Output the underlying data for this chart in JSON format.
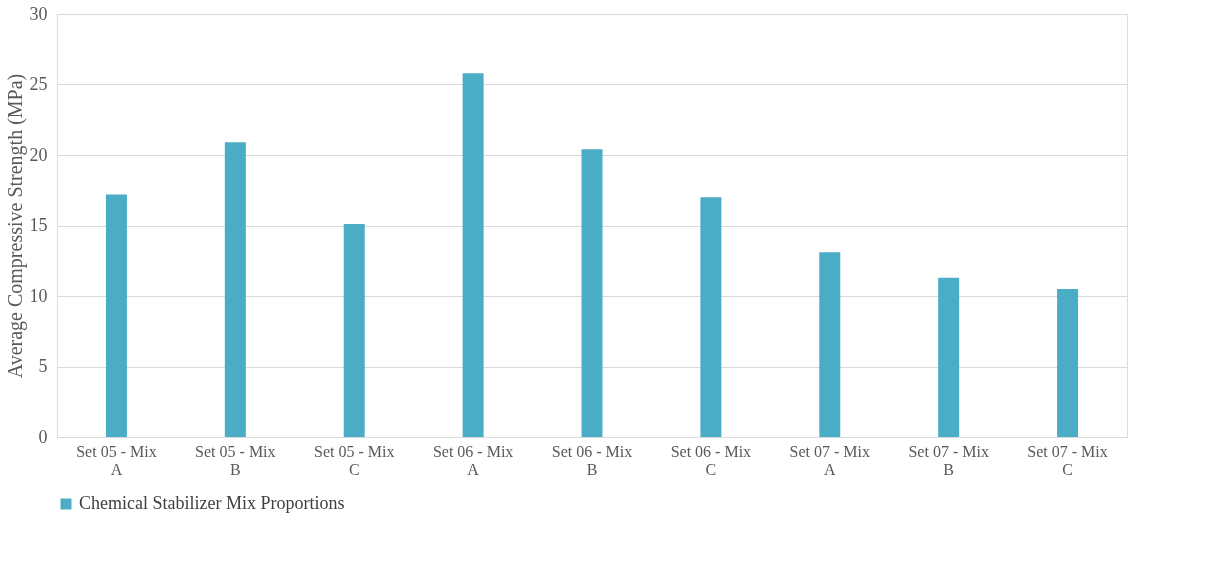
{
  "chart_data": {
    "type": "bar",
    "ylabel": "Average Compressive Strength (MPa)",
    "categories": [
      "Set 05 - Mix A",
      "Set 05 - Mix B",
      "Set 05 - Mix C",
      "Set 06 - Mix A",
      "Set 06 - Mix B",
      "Set 06 - Mix C",
      "Set 07 - Mix A",
      "Set 07 - Mix B",
      "Set 07 - Mix C"
    ],
    "series": [
      {
        "name": "Chemical Stabilizer Mix Proportions",
        "color": "#4bacc6",
        "values": [
          17.2,
          20.9,
          15.1,
          25.8,
          20.4,
          17.0,
          13.1,
          11.3,
          10.5
        ]
      }
    ],
    "ylim": [
      0,
      30
    ],
    "yticks": [
      0,
      5,
      10,
      15,
      20,
      25,
      30
    ],
    "grid": "y",
    "legend": "bottom"
  }
}
